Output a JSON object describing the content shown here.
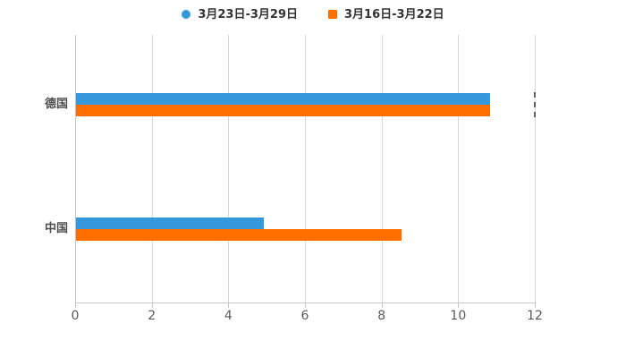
{
  "chart_data": {
    "type": "bar",
    "orientation": "horizontal",
    "title": "",
    "xlabel": "",
    "ylabel": "",
    "categories": [
      "德国",
      "中国"
    ],
    "series": [
      {
        "name": "3月23日-3月29日",
        "color": "#3498db",
        "marker": "circle",
        "values": [
          10.8,
          4.9
        ]
      },
      {
        "name": "3月16日-3月22日",
        "color": "#ff6f00",
        "marker": "square",
        "values": [
          10.8,
          8.5
        ]
      }
    ],
    "xlim": [
      0,
      12
    ],
    "xticks": [
      0,
      2,
      4,
      6,
      8,
      10,
      12
    ],
    "grid": "vertical",
    "legend_position": "top",
    "annotations": [
      {
        "type": "dashed-vertical-segment",
        "x": 12,
        "category_index": 0
      }
    ]
  },
  "colors": {
    "background": "#ffffff",
    "axis_line": "#c6c6c6",
    "gridline": "#d9d9d9",
    "tick_label": "#595959",
    "category_label": "#4d4d4d",
    "legend_text": "#333333",
    "series_blue": "#3498db",
    "series_orange": "#ff6f00"
  }
}
